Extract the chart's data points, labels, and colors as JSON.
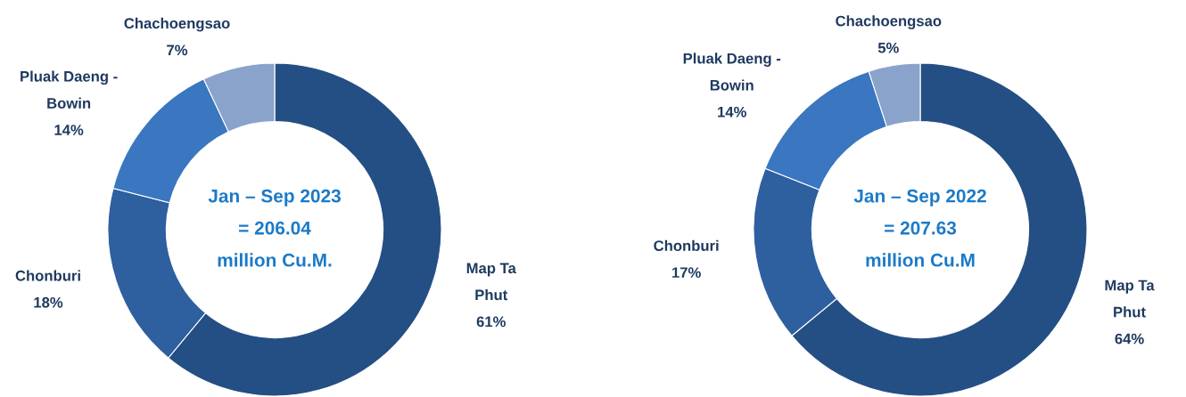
{
  "chart_data": [
    {
      "type": "donut",
      "categories": [
        "Map Ta\nPhut",
        "Chonburi",
        "Pluak Daeng -\nBowin",
        "Chachoengsao"
      ],
      "values": [
        61,
        18,
        14,
        7
      ],
      "value_labels": [
        "61%",
        "18%",
        "14%",
        "7%"
      ],
      "colors": [
        "#244f85",
        "#2e5f9f",
        "#3a77c0",
        "#8aa3cb"
      ],
      "annotations": [
        "Jan – Sep 2023\n= 206.04\nmillion Cu.M."
      ]
    },
    {
      "type": "donut",
      "categories": [
        "Map Ta\nPhut",
        "Chonburi",
        "Pluak Daeng -\nBowin",
        "Chachoengsao"
      ],
      "values": [
        64,
        17,
        14,
        5
      ],
      "value_labels": [
        "64%",
        "17%",
        "14%",
        "5%"
      ],
      "colors": [
        "#244f85",
        "#2e5f9f",
        "#3a77c0",
        "#8aa3cb"
      ],
      "annotations": [
        "Jan – Sep 2022\n= 207.63\nmillion Cu.M"
      ]
    }
  ]
}
